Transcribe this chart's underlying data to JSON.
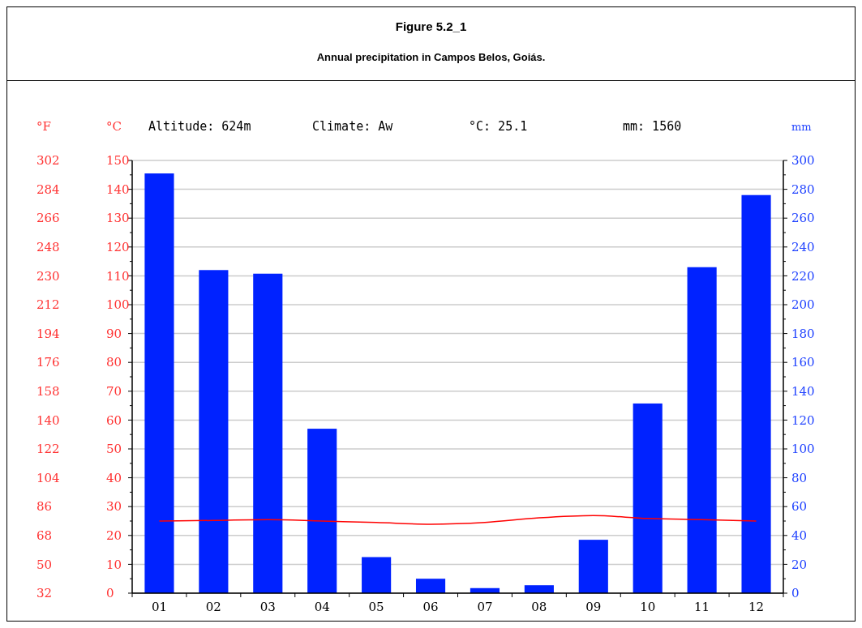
{
  "chart_data": {
    "type": "bar",
    "title": "Figure 5.2_1",
    "subtitle": "Annual precipitation in Campos Belos, Goiás.",
    "annotations": [
      "Altitude: 624m",
      "Climate: Aw",
      "°C: 25.1",
      "mm: 1560"
    ],
    "categories": [
      "01",
      "02",
      "03",
      "04",
      "05",
      "06",
      "07",
      "08",
      "09",
      "10",
      "11",
      "12"
    ],
    "series": [
      {
        "axis": "y2",
        "color": "#0022ff",
        "values": [
          291,
          224,
          221.5,
          114,
          25,
          10,
          3.5,
          5.5,
          37,
          131.5,
          226,
          276
        ]
      },
      {
        "type": "line",
        "axis": "y",
        "color": "#ff0000",
        "values": [
          25.0,
          25.2,
          25.5,
          25.0,
          24.5,
          23.9,
          24.5,
          26.1,
          26.9,
          25.9,
          25.5,
          25.0
        ]
      }
    ],
    "ylabel": "°C",
    "y2label": "mm",
    "y3label": "°F",
    "ylim": [
      0,
      150
    ],
    "yticks": [
      0,
      {
        "value": 5,
        "label": null
      },
      10,
      {
        "value": 15,
        "label": null
      },
      20,
      {
        "value": 25,
        "label": null
      },
      30,
      {
        "value": 35,
        "label": null
      },
      40,
      {
        "value": 45,
        "label": null
      },
      50,
      {
        "value": 55,
        "label": null
      },
      60,
      {
        "value": 65,
        "label": null
      },
      70,
      {
        "value": 75,
        "label": null
      },
      80,
      {
        "value": 85,
        "label": null
      },
      90,
      {
        "value": 95,
        "label": null
      },
      100,
      {
        "value": 105,
        "label": null
      },
      110,
      {
        "value": 115,
        "label": null
      },
      120,
      {
        "value": 125,
        "label": null
      },
      130,
      {
        "value": 135,
        "label": null
      },
      140,
      {
        "value": 145,
        "label": null
      },
      150
    ],
    "y2lim": [
      0,
      300
    ],
    "y2ticks": [
      0,
      {
        "value": 10,
        "label": null
      },
      20,
      {
        "value": 30,
        "label": null
      },
      40,
      {
        "value": 50,
        "label": null
      },
      60,
      {
        "value": 70,
        "label": null
      },
      80,
      {
        "value": 90,
        "label": null
      },
      100,
      {
        "value": 110,
        "label": null
      },
      120,
      {
        "value": 130,
        "label": null
      },
      140,
      {
        "value": 150,
        "label": null
      },
      160,
      {
        "value": 170,
        "label": null
      },
      180,
      {
        "value": 190,
        "label": null
      },
      200,
      {
        "value": 210,
        "label": null
      },
      220,
      {
        "value": 230,
        "label": null
      },
      240,
      {
        "value": 250,
        "label": null
      },
      260,
      {
        "value": 270,
        "label": null
      },
      280,
      {
        "value": 290,
        "label": null
      },
      300
    ],
    "y3lim": [
      32,
      302
    ],
    "y3ticks": [
      32,
      50,
      68,
      86,
      104,
      122,
      140,
      158,
      176,
      194,
      212,
      230,
      248,
      266,
      284,
      302
    ],
    "grid": "y"
  }
}
